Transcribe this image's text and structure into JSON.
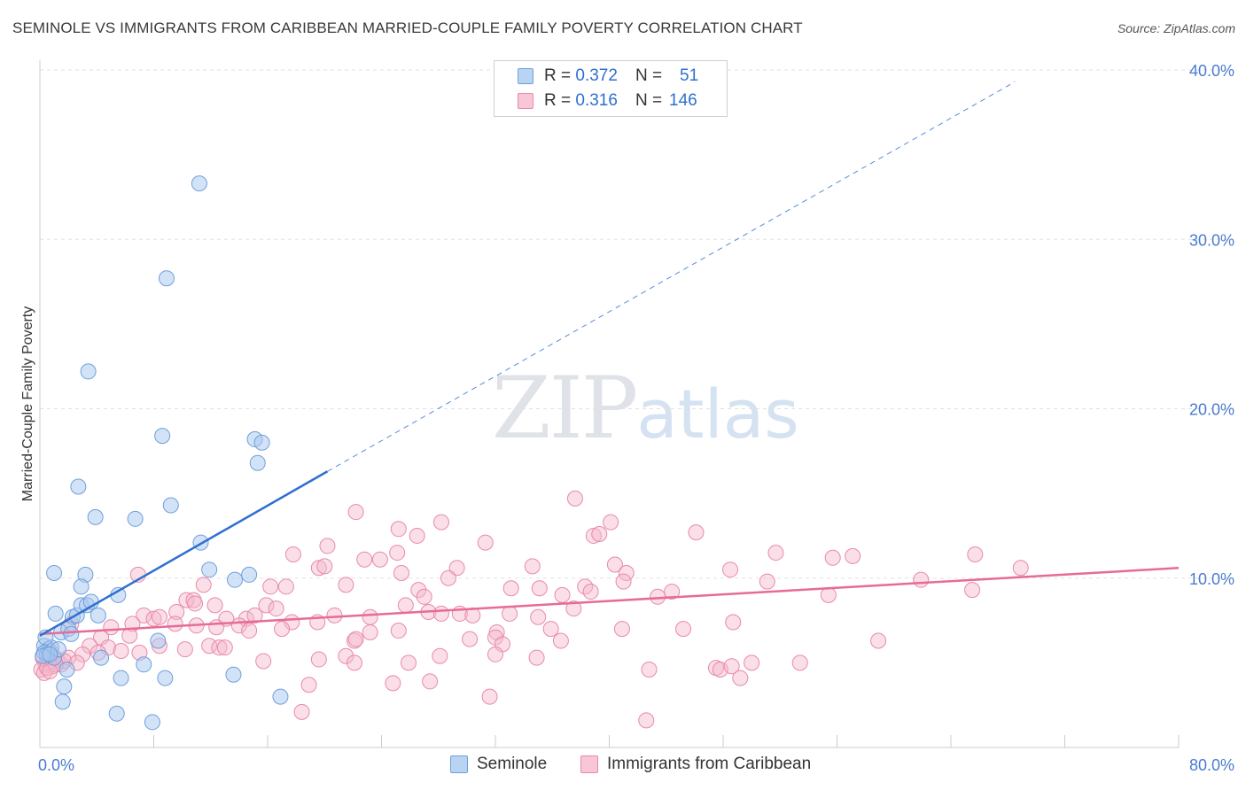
{
  "header": {
    "title": "SEMINOLE VS IMMIGRANTS FROM CARIBBEAN MARRIED-COUPLE FAMILY POVERTY CORRELATION CHART",
    "source": "Source: ZipAtlas.com"
  },
  "watermark": {
    "zip": "ZIP",
    "atlas": "atlas"
  },
  "legend": {
    "rows": [
      {
        "r_label": "R =",
        "r_value": "0.372",
        "n_label": "N =",
        "n_value": "51"
      },
      {
        "r_label": "R =",
        "r_value": "0.316",
        "n_label": "N =",
        "n_value": "146"
      }
    ]
  },
  "bottom_legend": {
    "series1": "Seminole",
    "series2": "Immigrants from Caribbean"
  },
  "colors": {
    "seminole_fill": "#a8c8f0",
    "seminole_stroke": "#6f9fdc",
    "seminole_line": "#2f6fd0",
    "caribbean_fill": "#f5b8cc",
    "caribbean_stroke": "#e98aa8",
    "caribbean_line": "#e86a98",
    "grid": "#e2e2e2",
    "axis_text": "#4a7bd0"
  },
  "chart_data": {
    "type": "scatter",
    "title": "SEMINOLE VS IMMIGRANTS FROM CARIBBEAN MARRIED-COUPLE FAMILY POVERTY CORRELATION CHART",
    "xlabel": "",
    "ylabel": "Married-Couple Family Poverty",
    "xlim": [
      0,
      80
    ],
    "ylim": [
      0,
      40
    ],
    "x_tick_labels": [
      "0.0%",
      "80.0%"
    ],
    "y_ticks": [
      10,
      20,
      30,
      40
    ],
    "y_tick_labels": [
      "10.0%",
      "20.0%",
      "30.0%",
      "40.0%"
    ],
    "grid": true,
    "series": [
      {
        "name": "Seminole",
        "r": 0.372,
        "n": 51,
        "trend": {
          "x0": 0,
          "y0": 6.6,
          "x1": 20.2,
          "y1": 16.3,
          "dashed_to_x": 68.5,
          "dashed_to_y": 39.3
        },
        "points": [
          [
            11.2,
            33.3
          ],
          [
            8.9,
            27.7
          ],
          [
            3.4,
            22.2
          ],
          [
            8.6,
            18.4
          ],
          [
            15.1,
            18.2
          ],
          [
            15.6,
            18.0
          ],
          [
            15.3,
            16.8
          ],
          [
            2.7,
            15.4
          ],
          [
            9.2,
            14.3
          ],
          [
            3.9,
            13.6
          ],
          [
            6.7,
            13.5
          ],
          [
            11.3,
            12.1
          ],
          [
            1.0,
            10.3
          ],
          [
            3.2,
            10.2
          ],
          [
            11.9,
            10.5
          ],
          [
            13.7,
            9.9
          ],
          [
            14.7,
            10.2
          ],
          [
            2.9,
            9.5
          ],
          [
            5.5,
            9.0
          ],
          [
            1.1,
            7.9
          ],
          [
            2.3,
            7.7
          ],
          [
            2.6,
            7.8
          ],
          [
            2.9,
            8.4
          ],
          [
            3.3,
            8.4
          ],
          [
            3.6,
            8.6
          ],
          [
            4.1,
            7.8
          ],
          [
            1.5,
            6.8
          ],
          [
            2.0,
            7.0
          ],
          [
            2.2,
            6.7
          ],
          [
            0.3,
            6.0
          ],
          [
            0.6,
            5.8
          ],
          [
            0.8,
            5.9
          ],
          [
            1.0,
            5.3
          ],
          [
            0.3,
            5.6
          ],
          [
            0.5,
            5.5
          ],
          [
            1.3,
            5.8
          ],
          [
            0.2,
            5.4
          ],
          [
            0.7,
            5.5
          ],
          [
            1.9,
            4.6
          ],
          [
            4.3,
            5.3
          ],
          [
            7.3,
            4.9
          ],
          [
            8.3,
            6.3
          ],
          [
            5.7,
            4.1
          ],
          [
            8.8,
            4.1
          ],
          [
            13.6,
            4.3
          ],
          [
            1.7,
            3.6
          ],
          [
            1.6,
            2.7
          ],
          [
            5.4,
            2.0
          ],
          [
            7.9,
            1.5
          ],
          [
            16.9,
            3.0
          ],
          [
            0.4,
            6.5
          ]
        ]
      },
      {
        "name": "Immigrants from Caribbean",
        "r": 0.316,
        "n": 146,
        "trend": {
          "x0": 0,
          "y0": 6.7,
          "x1": 80,
          "y1": 10.6
        },
        "points": [
          [
            37.6,
            14.7
          ],
          [
            22.2,
            13.9
          ],
          [
            28.2,
            13.3
          ],
          [
            40.1,
            13.3
          ],
          [
            25.2,
            12.9
          ],
          [
            26.5,
            12.5
          ],
          [
            31.3,
            12.1
          ],
          [
            38.9,
            12.5
          ],
          [
            39.3,
            12.6
          ],
          [
            46.1,
            12.7
          ],
          [
            20.2,
            11.9
          ],
          [
            17.8,
            11.4
          ],
          [
            22.8,
            11.1
          ],
          [
            23.9,
            11.1
          ],
          [
            25.1,
            11.5
          ],
          [
            51.7,
            11.5
          ],
          [
            55.7,
            11.2
          ],
          [
            57.1,
            11.3
          ],
          [
            65.7,
            11.4
          ],
          [
            68.9,
            10.6
          ],
          [
            29.3,
            10.6
          ],
          [
            19.6,
            10.6
          ],
          [
            20.0,
            10.7
          ],
          [
            34.6,
            10.7
          ],
          [
            40.4,
            10.8
          ],
          [
            41.2,
            10.3
          ],
          [
            48.5,
            10.5
          ],
          [
            25.4,
            10.3
          ],
          [
            28.7,
            10.0
          ],
          [
            6.9,
            10.2
          ],
          [
            21.5,
            9.6
          ],
          [
            11.5,
            9.6
          ],
          [
            16.2,
            9.5
          ],
          [
            17.3,
            9.5
          ],
          [
            33.1,
            9.4
          ],
          [
            35.1,
            9.4
          ],
          [
            38.3,
            9.5
          ],
          [
            41.0,
            9.8
          ],
          [
            26.6,
            9.3
          ],
          [
            27.0,
            8.9
          ],
          [
            38.7,
            9.2
          ],
          [
            44.4,
            9.2
          ],
          [
            51.1,
            9.8
          ],
          [
            61.9,
            9.9
          ],
          [
            65.5,
            9.3
          ],
          [
            55.4,
            9.0
          ],
          [
            43.4,
            8.9
          ],
          [
            36.7,
            9.0
          ],
          [
            10.3,
            8.7
          ],
          [
            10.8,
            8.7
          ],
          [
            10.9,
            8.5
          ],
          [
            12.3,
            8.4
          ],
          [
            15.9,
            8.4
          ],
          [
            16.6,
            8.2
          ],
          [
            25.7,
            8.4
          ],
          [
            27.3,
            8.0
          ],
          [
            28.2,
            7.9
          ],
          [
            29.5,
            7.9
          ],
          [
            30.4,
            7.8
          ],
          [
            33.0,
            7.9
          ],
          [
            35.0,
            7.7
          ],
          [
            37.5,
            8.2
          ],
          [
            48.7,
            7.4
          ],
          [
            9.6,
            8.0
          ],
          [
            7.3,
            7.8
          ],
          [
            8.0,
            7.6
          ],
          [
            8.4,
            7.7
          ],
          [
            13.1,
            7.6
          ],
          [
            14.5,
            7.6
          ],
          [
            15.1,
            7.8
          ],
          [
            19.5,
            7.4
          ],
          [
            20.7,
            7.8
          ],
          [
            23.2,
            7.7
          ],
          [
            6.5,
            7.3
          ],
          [
            5.0,
            7.1
          ],
          [
            9.5,
            7.3
          ],
          [
            14.0,
            7.2
          ],
          [
            14.7,
            6.9
          ],
          [
            17.7,
            7.4
          ],
          [
            11.0,
            7.2
          ],
          [
            12.4,
            7.1
          ],
          [
            17.0,
            7.0
          ],
          [
            23.2,
            6.8
          ],
          [
            25.2,
            6.9
          ],
          [
            32.1,
            6.8
          ],
          [
            35.9,
            7.0
          ],
          [
            40.9,
            7.0
          ],
          [
            45.2,
            7.0
          ],
          [
            2.2,
            7.3
          ],
          [
            4.3,
            6.5
          ],
          [
            6.3,
            6.6
          ],
          [
            22.1,
            6.3
          ],
          [
            22.2,
            6.4
          ],
          [
            30.2,
            6.4
          ],
          [
            32.0,
            6.5
          ],
          [
            32.5,
            6.1
          ],
          [
            36.6,
            6.3
          ],
          [
            58.9,
            6.3
          ],
          [
            3.5,
            6.0
          ],
          [
            4.8,
            5.9
          ],
          [
            5.7,
            5.7
          ],
          [
            7.0,
            5.6
          ],
          [
            8.4,
            6.0
          ],
          [
            10.2,
            5.8
          ],
          [
            11.9,
            6.0
          ],
          [
            12.6,
            5.9
          ],
          [
            13.0,
            5.9
          ],
          [
            3.0,
            5.5
          ],
          [
            4.1,
            5.6
          ],
          [
            21.5,
            5.4
          ],
          [
            28.1,
            5.4
          ],
          [
            32.0,
            5.5
          ],
          [
            19.6,
            5.2
          ],
          [
            15.7,
            5.1
          ],
          [
            22.1,
            5.0
          ],
          [
            25.9,
            5.0
          ],
          [
            34.9,
            5.3
          ],
          [
            47.5,
            4.7
          ],
          [
            47.8,
            4.6
          ],
          [
            53.4,
            5.0
          ],
          [
            50.0,
            5.0
          ],
          [
            48.6,
            4.8
          ],
          [
            42.8,
            4.6
          ],
          [
            0.8,
            5.6
          ],
          [
            1.2,
            5.2
          ],
          [
            1.5,
            4.9
          ],
          [
            2.0,
            5.3
          ],
          [
            0.4,
            4.9
          ],
          [
            0.9,
            4.8
          ],
          [
            1.7,
            5.1
          ],
          [
            0.2,
            5.3
          ],
          [
            0.6,
            5.0
          ],
          [
            2.6,
            5.0
          ],
          [
            18.9,
            3.7
          ],
          [
            24.8,
            3.8
          ],
          [
            27.4,
            3.9
          ],
          [
            49.2,
            4.1
          ],
          [
            31.6,
            3.0
          ],
          [
            18.4,
            2.1
          ],
          [
            42.6,
            1.6
          ],
          [
            0.1,
            4.6
          ],
          [
            0.3,
            4.4
          ],
          [
            0.5,
            4.7
          ],
          [
            1.1,
            4.9
          ],
          [
            0.7,
            4.5
          ]
        ]
      }
    ]
  }
}
